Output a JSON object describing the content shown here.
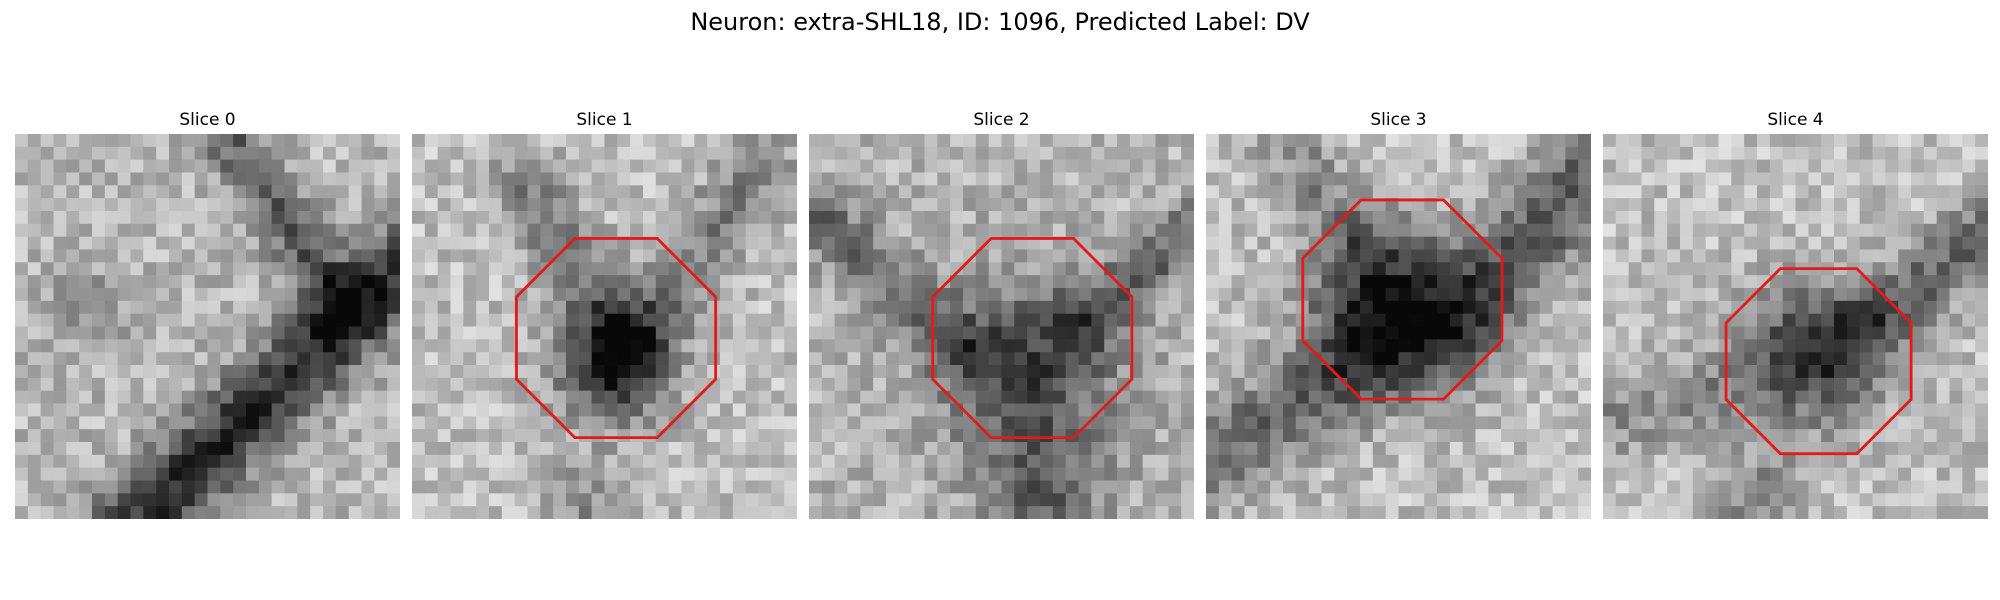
{
  "figure": {
    "title": "Neuron: extra-SHL18, ID: 1096, Predicted Label: DV"
  },
  "panels": [
    {
      "title": "Slice 0",
      "roi": false
    },
    {
      "title": "Slice 1",
      "roi": true,
      "roi_center": [
        0.53,
        0.53
      ],
      "roi_radius": 0.28
    },
    {
      "title": "Slice 2",
      "roi": true,
      "roi_center": [
        0.58,
        0.53
      ],
      "roi_radius": 0.28
    },
    {
      "title": "Slice 3",
      "roi": true,
      "roi_center": [
        0.51,
        0.43
      ],
      "roi_radius": 0.28
    },
    {
      "title": "Slice 4",
      "roi": true,
      "roi_center": [
        0.56,
        0.59
      ],
      "roi_radius": 0.26
    }
  ],
  "colors": {
    "roi_outline": "#e31a1c"
  },
  "image": {
    "colormap": "gray",
    "grid_size": 30,
    "roi_shape": "octagon"
  }
}
